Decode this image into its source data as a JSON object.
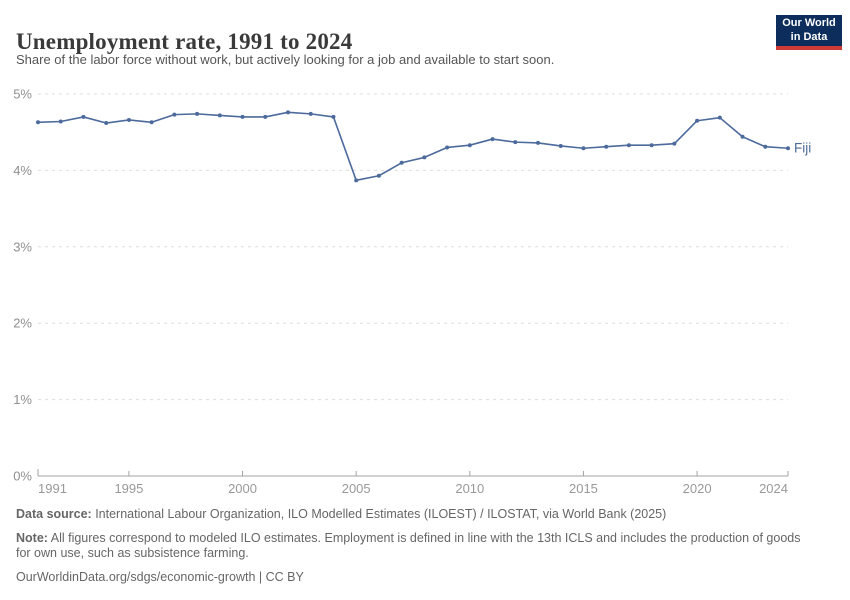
{
  "header": {
    "title": "Unemployment rate, 1991 to 2024",
    "subtitle": "Share of the labor force without work, but actively looking for a job and available to start soon.",
    "logo": {
      "line1": "Our World",
      "line2": "in Data",
      "bg_color": "#0d2e5c",
      "accent_color": "#d03a34"
    }
  },
  "chart_data": {
    "type": "line",
    "title": "Unemployment rate, 1991 to 2024",
    "xlabel": "",
    "ylabel": "",
    "xlim": [
      1991,
      2024
    ],
    "ylim": [
      0,
      5
    ],
    "grid": "horizontal-dashed",
    "legend_position": "end-of-line-label",
    "x_ticks": [
      1991,
      1995,
      2000,
      2005,
      2010,
      2015,
      2020,
      2024
    ],
    "y_tick_labels": [
      "0%",
      "1%",
      "2%",
      "3%",
      "4%",
      "5%"
    ],
    "series": [
      {
        "name": "Fiji",
        "color": "#4c6a9c",
        "years": [
          1991,
          1992,
          1993,
          1994,
          1995,
          1996,
          1997,
          1998,
          1999,
          2000,
          2001,
          2002,
          2003,
          2004,
          2005,
          2006,
          2007,
          2008,
          2009,
          2010,
          2011,
          2012,
          2013,
          2014,
          2015,
          2016,
          2017,
          2018,
          2019,
          2020,
          2021,
          2022,
          2023,
          2024
        ],
        "values": [
          4.63,
          4.64,
          4.7,
          4.62,
          4.66,
          4.63,
          4.73,
          4.74,
          4.72,
          4.7,
          4.7,
          4.76,
          4.74,
          4.7,
          3.87,
          3.93,
          4.1,
          4.17,
          4.3,
          4.33,
          4.41,
          4.37,
          4.36,
          4.32,
          4.29,
          4.31,
          4.33,
          4.33,
          4.35,
          4.65,
          4.69,
          4.44,
          4.31,
          4.29
        ]
      }
    ]
  },
  "colors": {
    "line": "#4c6a9c",
    "grid": "#dddddd",
    "axis": "#a3a3a3",
    "tick_label": "#999999",
    "y_label": "#8f8f8f"
  },
  "footer": {
    "data_source_label": "Data source:",
    "data_source_text": " International Labour Organization, ILO Modelled Estimates (ILOEST) / ILOSTAT, via World Bank (2025)",
    "note_label": "Note:",
    "note_text": " All figures correspond to modeled ILO estimates. Employment is defined in line with the 13th ICLS and includes the production of goods for own use, such as subsistence farming.",
    "link": "OurWorldinData.org/sdgs/economic-growth | CC BY"
  }
}
